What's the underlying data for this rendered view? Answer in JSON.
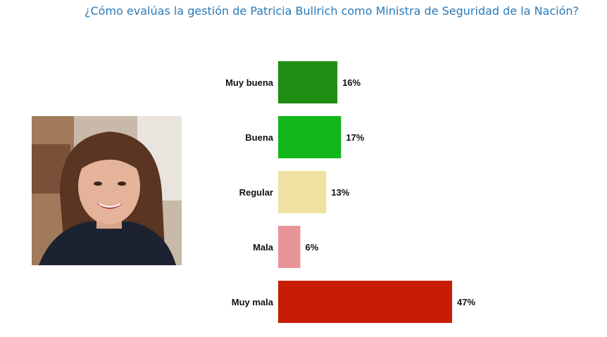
{
  "title": "¿Cómo evalúas la gestión de Patricia Bullrich como Ministra de Seguridad de la Nación?",
  "photo": {
    "alt": "Patricia Bullrich"
  },
  "chart_data": {
    "type": "bar",
    "orientation": "horizontal",
    "title": "¿Cómo evalúas la gestión de Patricia Bullrich como Ministra de Seguridad de la Nación?",
    "categories": [
      "Muy buena",
      "Buena",
      "Regular",
      "Mala",
      "Muy mala"
    ],
    "values": [
      16,
      17,
      13,
      6,
      47
    ],
    "value_labels": [
      "16%",
      "17%",
      "13%",
      "6%",
      "47%"
    ],
    "colors": [
      "#1f8c12",
      "#12b81a",
      "#efe1a2",
      "#e89498",
      "#c81c07"
    ],
    "unit": "%",
    "xlim": [
      0,
      50
    ],
    "grid": false,
    "legend": "none"
  }
}
